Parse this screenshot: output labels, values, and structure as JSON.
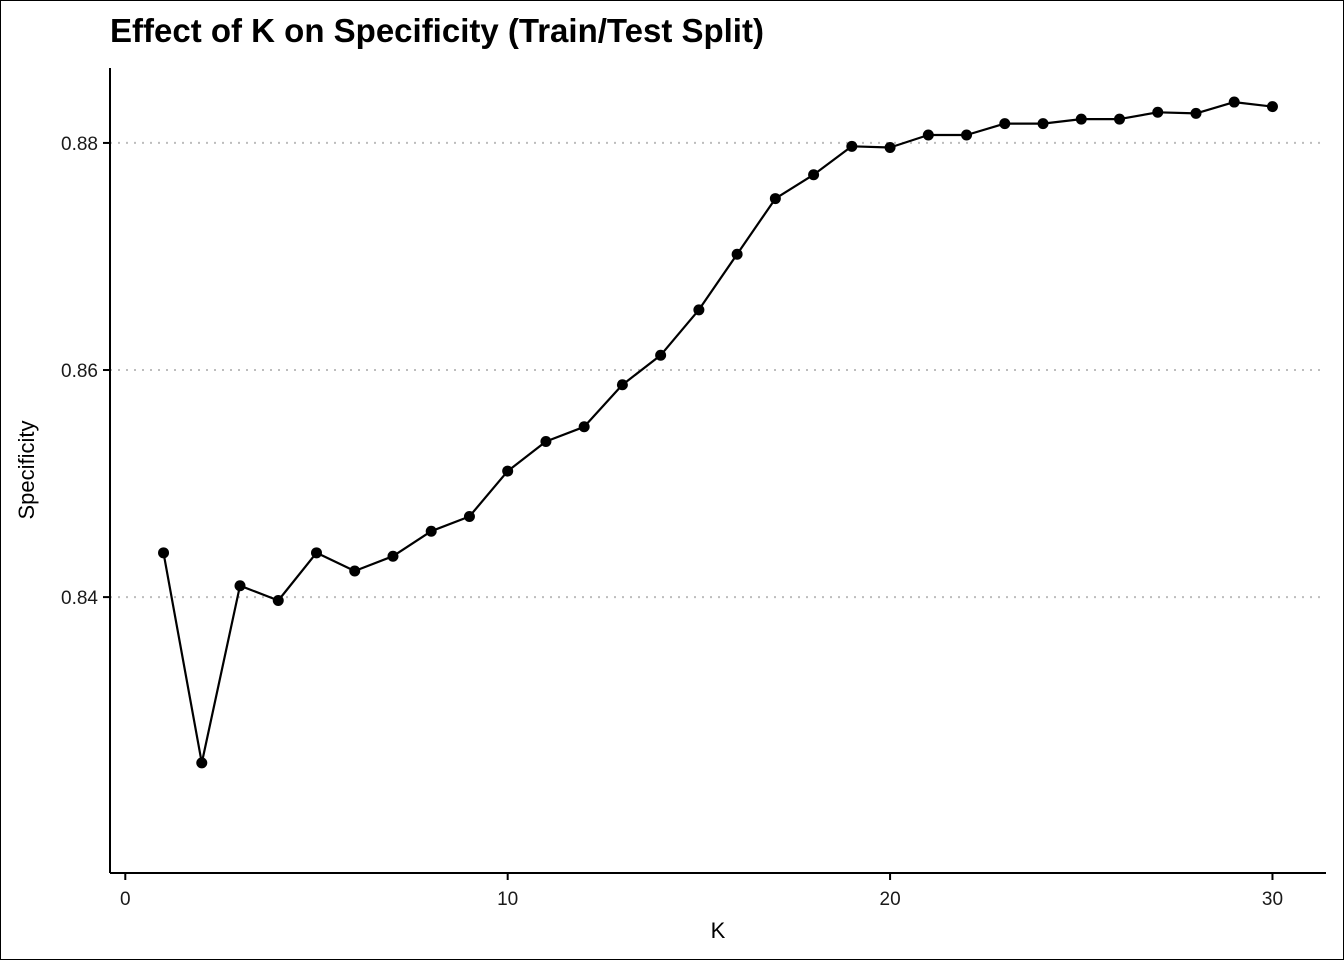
{
  "chart_data": {
    "type": "line",
    "title": "Effect of K on Specificity (Train/Test Split)",
    "xlabel": "K",
    "ylabel": "Specificity",
    "xlim": [
      -0.4,
      31.4
    ],
    "ylim": [
      0.8157,
      0.8866
    ],
    "x_ticks": [
      0,
      10,
      20,
      30
    ],
    "x_tick_labels": [
      "0",
      "10",
      "20",
      "30"
    ],
    "y_ticks": [
      0.84,
      0.86,
      0.88
    ],
    "y_tick_labels": [
      "0.84",
      "0.86",
      "0.88"
    ],
    "grid": "horizontal dotted at major y ticks",
    "legend": "none",
    "line_color": "#000000",
    "grid_color": "#bdbdbd",
    "series": [
      {
        "x": [
          1,
          2,
          3,
          4,
          5,
          6,
          7,
          8,
          9,
          10,
          11,
          12,
          13,
          14,
          15,
          16,
          17,
          18,
          19,
          20,
          21,
          22,
          23,
          24,
          25,
          26,
          27,
          28,
          29,
          30
        ],
        "values": [
          0.8439,
          0.8254,
          0.841,
          0.8397,
          0.8439,
          0.8423,
          0.8436,
          0.8458,
          0.8471,
          0.8511,
          0.8537,
          0.855,
          0.8587,
          0.8613,
          0.8653,
          0.8702,
          0.8751,
          0.8772,
          0.8797,
          0.8796,
          0.8807,
          0.8807,
          0.8817,
          0.8817,
          0.8821,
          0.8821,
          0.8827,
          0.8826,
          0.8836,
          0.8832
        ]
      }
    ]
  }
}
